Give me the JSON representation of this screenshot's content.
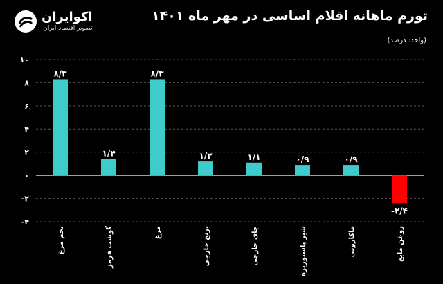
{
  "header": {
    "title": "تورم ماهانه اقلام اساسی در مهر ماه ۱۴۰۱",
    "unit": "(واحد: درصد)"
  },
  "logo": {
    "name": "اکوایران",
    "tagline": "تصویر اقتصاد ایران",
    "icon": "ecoiran-swirl-icon"
  },
  "colors": {
    "positive": "#3ecbc9",
    "negative": "#ff0000",
    "axis": "#ffffff",
    "grid": "#555555"
  },
  "chart_data": {
    "type": "bar",
    "title": "تورم ماهانه اقلام اساسی در مهر ماه ۱۴۰۱",
    "ylabel": "",
    "xlabel": "",
    "ylim": [
      -4,
      10
    ],
    "yticks": [
      -4,
      -2,
      0,
      2,
      4,
      6,
      8,
      10
    ],
    "ytick_labels": [
      "-۴",
      "-۲",
      "۰",
      "۲",
      "۴",
      "۶",
      "۸",
      "۱۰"
    ],
    "grid": "dashed-horizontal",
    "categories": [
      "تخم مرغ",
      "گوشت قرمز",
      "مرغ",
      "برنج خارجی",
      "چای خارجی",
      "شیر پاستوریزه",
      "ماکارونی",
      "روغن مایع"
    ],
    "values": [
      8.3,
      1.4,
      8.3,
      1.2,
      1.1,
      0.9,
      0.9,
      -2.4
    ],
    "value_labels": [
      "۸/۳",
      "۱/۴",
      "۸/۳",
      "۱/۲",
      "۱/۱",
      "۰/۹",
      "۰/۹",
      "-۲/۴"
    ]
  }
}
